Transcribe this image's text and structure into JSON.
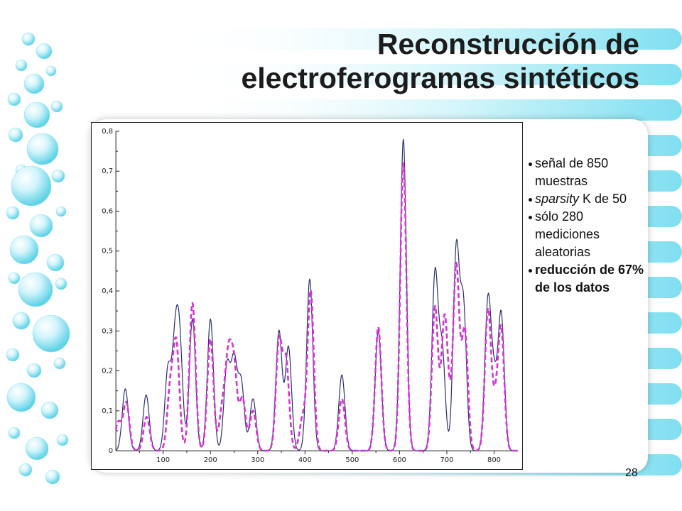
{
  "slide": {
    "title_line1": "Reconstrucción de",
    "title_line2": "electroferogramas sintéticos",
    "page_number": "28"
  },
  "bullets": {
    "b1": "señal de 850 muestras",
    "b2_em": "sparsity",
    "b2_rest": " K de 50",
    "b3": "sólo 280 mediciones aleatorias",
    "b4": "reducción de 67% de los datos"
  },
  "colors": {
    "original": "#2b2f6e",
    "reconstructed": "#d633d6",
    "accent": "#5cd2e6"
  },
  "chart_data": {
    "type": "line",
    "title": "",
    "xlabel": "",
    "ylabel": "",
    "xlim": [
      0,
      850
    ],
    "ylim": [
      0,
      0.8
    ],
    "x_ticks": [
      "100",
      "200",
      "300",
      "400",
      "500",
      "600",
      "700",
      "800"
    ],
    "y_ticks": [
      "0",
      "0,1",
      "0,2",
      "0,3",
      "0,4",
      "0,5",
      "0,6",
      "0,7",
      "0,8"
    ],
    "grid": false,
    "series": [
      {
        "style": "solid",
        "color": "#2b2f6e",
        "peaks": [
          {
            "x": 20,
            "y": 0.155
          },
          {
            "x": 64,
            "y": 0.14
          },
          {
            "x": 110,
            "y": 0.2
          },
          {
            "x": 125,
            "y": 0.24
          },
          {
            "x": 135,
            "y": 0.25
          },
          {
            "x": 162,
            "y": 0.33
          },
          {
            "x": 200,
            "y": 0.33
          },
          {
            "x": 235,
            "y": 0.21
          },
          {
            "x": 250,
            "y": 0.22
          },
          {
            "x": 265,
            "y": 0.17
          },
          {
            "x": 290,
            "y": 0.13
          },
          {
            "x": 345,
            "y": 0.3
          },
          {
            "x": 365,
            "y": 0.26
          },
          {
            "x": 410,
            "y": 0.43
          },
          {
            "x": 478,
            "y": 0.19
          },
          {
            "x": 555,
            "y": 0.3
          },
          {
            "x": 608,
            "y": 0.78
          },
          {
            "x": 675,
            "y": 0.44
          },
          {
            "x": 690,
            "y": 0.25
          },
          {
            "x": 720,
            "y": 0.5
          },
          {
            "x": 735,
            "y": 0.36
          },
          {
            "x": 787,
            "y": 0.37
          },
          {
            "x": 800,
            "y": 0.16
          },
          {
            "x": 815,
            "y": 0.34
          }
        ]
      },
      {
        "style": "dashed",
        "color": "#d633d6",
        "peaks": [
          {
            "x": 5,
            "y": 0.07
          },
          {
            "x": 22,
            "y": 0.12
          },
          {
            "x": 65,
            "y": 0.085
          },
          {
            "x": 115,
            "y": 0.15
          },
          {
            "x": 128,
            "y": 0.26
          },
          {
            "x": 162,
            "y": 0.37
          },
          {
            "x": 200,
            "y": 0.28
          },
          {
            "x": 225,
            "y": 0.1
          },
          {
            "x": 238,
            "y": 0.22
          },
          {
            "x": 250,
            "y": 0.2
          },
          {
            "x": 268,
            "y": 0.13
          },
          {
            "x": 290,
            "y": 0.1
          },
          {
            "x": 345,
            "y": 0.27
          },
          {
            "x": 360,
            "y": 0.22
          },
          {
            "x": 395,
            "y": 0.08
          },
          {
            "x": 412,
            "y": 0.4
          },
          {
            "x": 478,
            "y": 0.13
          },
          {
            "x": 555,
            "y": 0.31
          },
          {
            "x": 608,
            "y": 0.72
          },
          {
            "x": 675,
            "y": 0.36
          },
          {
            "x": 695,
            "y": 0.32
          },
          {
            "x": 705,
            "y": 0.06
          },
          {
            "x": 720,
            "y": 0.46
          },
          {
            "x": 738,
            "y": 0.3
          },
          {
            "x": 787,
            "y": 0.35
          },
          {
            "x": 802,
            "y": 0.1
          },
          {
            "x": 815,
            "y": 0.3
          }
        ]
      }
    ]
  }
}
